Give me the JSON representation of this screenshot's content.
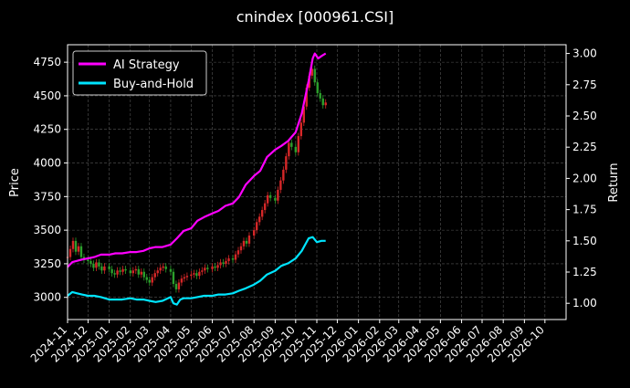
{
  "chart_data": {
    "type": "line",
    "title": "cnindex [000961.CSI]",
    "xlabel": "",
    "ylabel_left": "Price",
    "ylabel_right": "Return",
    "background": "#000000",
    "grid": true,
    "legend_placement": "top-left",
    "x_ticks": [
      "2024-11",
      "2024-12",
      "2025-01",
      "2025-02",
      "2025-03",
      "2025-04",
      "2025-05",
      "2025-06",
      "2025-07",
      "2025-08",
      "2025-09",
      "2025-10",
      "2025-11",
      "2025-12",
      "2026-01",
      "2026-02",
      "2026-03",
      "2026-04",
      "2026-05",
      "2026-06",
      "2026-07",
      "2026-08",
      "2026-09",
      "2026-10"
    ],
    "x_range": [
      "2024-11-01",
      "2026-11-01"
    ],
    "y_left_ticks": [
      3000,
      3250,
      3500,
      3750,
      4000,
      4250,
      4500,
      4750
    ],
    "y_left_range": [
      2835,
      4880
    ],
    "y_right_ticks": [
      1.0,
      1.25,
      1.5,
      1.75,
      2.0,
      2.25,
      2.5,
      2.75,
      3.0
    ],
    "y_right_range": [
      0.87,
      3.07
    ],
    "candle_colors": {
      "up": "#d62728",
      "down": "#2ca02c"
    },
    "series": [
      {
        "name": "AI Strategy",
        "axis": "right",
        "color": "#ff00ff",
        "points": [
          [
            "2024-11-01",
            1.29
          ],
          [
            "2024-11-08",
            1.33
          ],
          [
            "2024-11-15",
            1.34
          ],
          [
            "2024-11-22",
            1.35
          ],
          [
            "2024-12-01",
            1.36
          ],
          [
            "2024-12-10",
            1.37
          ],
          [
            "2024-12-20",
            1.39
          ],
          [
            "2025-01-01",
            1.39
          ],
          [
            "2025-01-10",
            1.4
          ],
          [
            "2025-01-20",
            1.4
          ],
          [
            "2025-02-01",
            1.41
          ],
          [
            "2025-02-10",
            1.41
          ],
          [
            "2025-02-20",
            1.42
          ],
          [
            "2025-03-01",
            1.44
          ],
          [
            "2025-03-10",
            1.45
          ],
          [
            "2025-03-20",
            1.45
          ],
          [
            "2025-04-01",
            1.47
          ],
          [
            "2025-04-10",
            1.52
          ],
          [
            "2025-04-20",
            1.58
          ],
          [
            "2025-05-01",
            1.6
          ],
          [
            "2025-05-10",
            1.66
          ],
          [
            "2025-05-20",
            1.69
          ],
          [
            "2025-06-01",
            1.72
          ],
          [
            "2025-06-10",
            1.74
          ],
          [
            "2025-06-20",
            1.78
          ],
          [
            "2025-07-01",
            1.8
          ],
          [
            "2025-07-10",
            1.85
          ],
          [
            "2025-07-20",
            1.95
          ],
          [
            "2025-08-01",
            2.02
          ],
          [
            "2025-08-10",
            2.06
          ],
          [
            "2025-08-20",
            2.17
          ],
          [
            "2025-09-01",
            2.23
          ],
          [
            "2025-09-10",
            2.26
          ],
          [
            "2025-09-20",
            2.3
          ],
          [
            "2025-10-01",
            2.37
          ],
          [
            "2025-10-10",
            2.52
          ],
          [
            "2025-10-20",
            2.78
          ],
          [
            "2025-10-26",
            2.96
          ],
          [
            "2025-10-29",
            3.0
          ],
          [
            "2025-11-03",
            2.96
          ],
          [
            "2025-11-08",
            2.98
          ],
          [
            "2025-11-14",
            3.0
          ]
        ]
      },
      {
        "name": "Buy-and-Hold",
        "axis": "right",
        "color": "#00e5ff",
        "points": [
          [
            "2024-11-01",
            1.06
          ],
          [
            "2024-11-08",
            1.09
          ],
          [
            "2024-11-15",
            1.08
          ],
          [
            "2024-11-22",
            1.07
          ],
          [
            "2024-12-01",
            1.06
          ],
          [
            "2024-12-10",
            1.06
          ],
          [
            "2024-12-20",
            1.05
          ],
          [
            "2025-01-01",
            1.03
          ],
          [
            "2025-01-10",
            1.03
          ],
          [
            "2025-01-20",
            1.03
          ],
          [
            "2025-02-01",
            1.04
          ],
          [
            "2025-02-10",
            1.03
          ],
          [
            "2025-02-20",
            1.03
          ],
          [
            "2025-03-01",
            1.02
          ],
          [
            "2025-03-10",
            1.01
          ],
          [
            "2025-03-20",
            1.02
          ],
          [
            "2025-04-01",
            1.05
          ],
          [
            "2025-04-05",
            1.0
          ],
          [
            "2025-04-10",
            0.99
          ],
          [
            "2025-04-15",
            1.03
          ],
          [
            "2025-04-20",
            1.04
          ],
          [
            "2025-05-01",
            1.04
          ],
          [
            "2025-05-10",
            1.05
          ],
          [
            "2025-05-20",
            1.06
          ],
          [
            "2025-06-01",
            1.06
          ],
          [
            "2025-06-10",
            1.07
          ],
          [
            "2025-06-20",
            1.07
          ],
          [
            "2025-07-01",
            1.08
          ],
          [
            "2025-07-10",
            1.1
          ],
          [
            "2025-07-20",
            1.12
          ],
          [
            "2025-08-01",
            1.15
          ],
          [
            "2025-08-10",
            1.18
          ],
          [
            "2025-08-20",
            1.23
          ],
          [
            "2025-09-01",
            1.26
          ],
          [
            "2025-09-10",
            1.3
          ],
          [
            "2025-09-20",
            1.32
          ],
          [
            "2025-10-01",
            1.36
          ],
          [
            "2025-10-10",
            1.42
          ],
          [
            "2025-10-20",
            1.52
          ],
          [
            "2025-10-26",
            1.53
          ],
          [
            "2025-11-01",
            1.49
          ],
          [
            "2025-11-08",
            1.5
          ],
          [
            "2025-11-14",
            1.5
          ]
        ]
      }
    ],
    "candles_close": [
      [
        "2024-11-01",
        3300
      ],
      [
        "2024-11-05",
        3360
      ],
      [
        "2024-11-09",
        3420
      ],
      [
        "2024-11-13",
        3340
      ],
      [
        "2024-11-17",
        3380
      ],
      [
        "2024-11-21",
        3300
      ],
      [
        "2024-11-25",
        3280
      ],
      [
        "2024-12-01",
        3270
      ],
      [
        "2024-12-05",
        3250
      ],
      [
        "2024-12-09",
        3220
      ],
      [
        "2024-12-13",
        3260
      ],
      [
        "2024-12-17",
        3230
      ],
      [
        "2024-12-21",
        3200
      ],
      [
        "2024-12-25",
        3230
      ],
      [
        "2025-01-01",
        3210
      ],
      [
        "2025-01-05",
        3180
      ],
      [
        "2025-01-09",
        3170
      ],
      [
        "2025-01-13",
        3200
      ],
      [
        "2025-01-17",
        3190
      ],
      [
        "2025-01-21",
        3210
      ],
      [
        "2025-01-25",
        3200
      ],
      [
        "2025-02-01",
        3180
      ],
      [
        "2025-02-05",
        3200
      ],
      [
        "2025-02-09",
        3210
      ],
      [
        "2025-02-13",
        3170
      ],
      [
        "2025-02-17",
        3190
      ],
      [
        "2025-02-21",
        3150
      ],
      [
        "2025-02-25",
        3130
      ],
      [
        "2025-03-01",
        3110
      ],
      [
        "2025-03-05",
        3150
      ],
      [
        "2025-03-09",
        3180
      ],
      [
        "2025-03-13",
        3200
      ],
      [
        "2025-03-17",
        3220
      ],
      [
        "2025-03-21",
        3230
      ],
      [
        "2025-03-25",
        3210
      ],
      [
        "2025-04-01",
        3190
      ],
      [
        "2025-04-05",
        3100
      ],
      [
        "2025-04-09",
        3060
      ],
      [
        "2025-04-13",
        3110
      ],
      [
        "2025-04-17",
        3140
      ],
      [
        "2025-04-21",
        3150
      ],
      [
        "2025-04-25",
        3160
      ],
      [
        "2025-05-01",
        3170
      ],
      [
        "2025-05-05",
        3180
      ],
      [
        "2025-05-09",
        3160
      ],
      [
        "2025-05-13",
        3190
      ],
      [
        "2025-05-17",
        3200
      ],
      [
        "2025-05-21",
        3220
      ],
      [
        "2025-05-25",
        3210
      ],
      [
        "2025-06-01",
        3230
      ],
      [
        "2025-06-05",
        3220
      ],
      [
        "2025-06-09",
        3240
      ],
      [
        "2025-06-13",
        3260
      ],
      [
        "2025-06-17",
        3250
      ],
      [
        "2025-06-21",
        3270
      ],
      [
        "2025-06-25",
        3290
      ],
      [
        "2025-07-01",
        3280
      ],
      [
        "2025-07-05",
        3320
      ],
      [
        "2025-07-09",
        3350
      ],
      [
        "2025-07-13",
        3380
      ],
      [
        "2025-07-17",
        3420
      ],
      [
        "2025-07-21",
        3400
      ],
      [
        "2025-07-25",
        3460
      ],
      [
        "2025-08-01",
        3500
      ],
      [
        "2025-08-05",
        3560
      ],
      [
        "2025-08-09",
        3600
      ],
      [
        "2025-08-13",
        3650
      ],
      [
        "2025-08-17",
        3700
      ],
      [
        "2025-08-21",
        3760
      ],
      [
        "2025-08-25",
        3740
      ],
      [
        "2025-09-01",
        3720
      ],
      [
        "2025-09-05",
        3800
      ],
      [
        "2025-09-09",
        3870
      ],
      [
        "2025-09-13",
        3950
      ],
      [
        "2025-09-17",
        4050
      ],
      [
        "2025-09-21",
        4150
      ],
      [
        "2025-09-25",
        4120
      ],
      [
        "2025-10-01",
        4080
      ],
      [
        "2025-10-05",
        4200
      ],
      [
        "2025-10-09",
        4300
      ],
      [
        "2025-10-13",
        4420
      ],
      [
        "2025-10-17",
        4560
      ],
      [
        "2025-10-21",
        4650
      ],
      [
        "2025-10-25",
        4700
      ],
      [
        "2025-10-29",
        4600
      ],
      [
        "2025-11-02",
        4520
      ],
      [
        "2025-11-06",
        4480
      ],
      [
        "2025-11-10",
        4430
      ],
      [
        "2025-11-14",
        4450
      ]
    ]
  }
}
